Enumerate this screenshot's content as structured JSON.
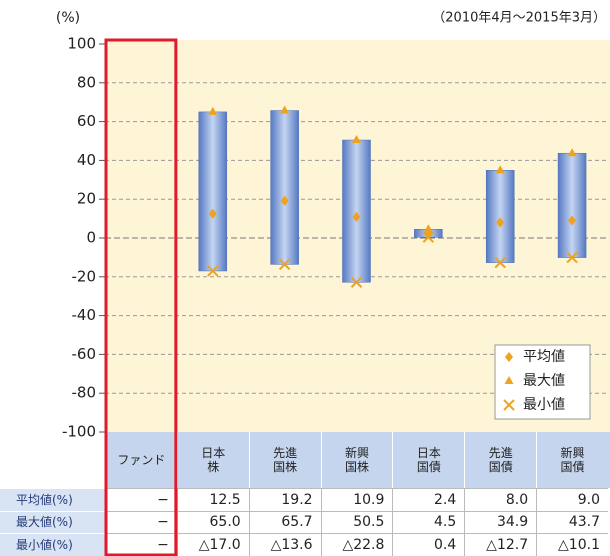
{
  "chart_data": {
    "type": "range_bar",
    "unit_label": "(%)",
    "period": "（2010年4月～2015年3月）",
    "categories": [
      "ファンド",
      "日本\n株",
      "先進\n国株",
      "新興\n国株",
      "日本\n国債",
      "先進\n国債",
      "新興\n国債"
    ],
    "ylim": [
      -100,
      100
    ],
    "yticks": [
      -100,
      -80,
      -60,
      -40,
      -20,
      0,
      20,
      40,
      60,
      80,
      100
    ],
    "grid": true,
    "legend_position": "lower right",
    "bar_color": "#7fa3d8",
    "series": [
      {
        "name": "平均値",
        "row_label": "平均値(%)",
        "color": "#eea21e",
        "marker": "diamond",
        "values": [
          null,
          12.5,
          19.2,
          10.9,
          2.4,
          8.0,
          9.0
        ],
        "value_labels": [
          "−",
          "12.5",
          "19.2",
          "10.9",
          "2.4",
          "8.0",
          "9.0"
        ]
      },
      {
        "name": "最大値",
        "row_label": "最大値(%)",
        "color": "#eea21e",
        "marker": "triangle",
        "values": [
          null,
          65.0,
          65.7,
          50.5,
          4.5,
          34.9,
          43.7
        ],
        "value_labels": [
          "−",
          "65.0",
          "65.7",
          "50.5",
          "4.5",
          "34.9",
          "43.7"
        ]
      },
      {
        "name": "最小値",
        "row_label": "最小値(%)",
        "color": "#eea21e",
        "marker": "x",
        "values": [
          null,
          -17.0,
          -13.6,
          -22.8,
          0.4,
          -12.7,
          -10.1
        ],
        "value_labels": [
          "−",
          "△17.0",
          "△13.6",
          "△22.8",
          "0.4",
          "△12.7",
          "△10.1"
        ]
      }
    ]
  }
}
